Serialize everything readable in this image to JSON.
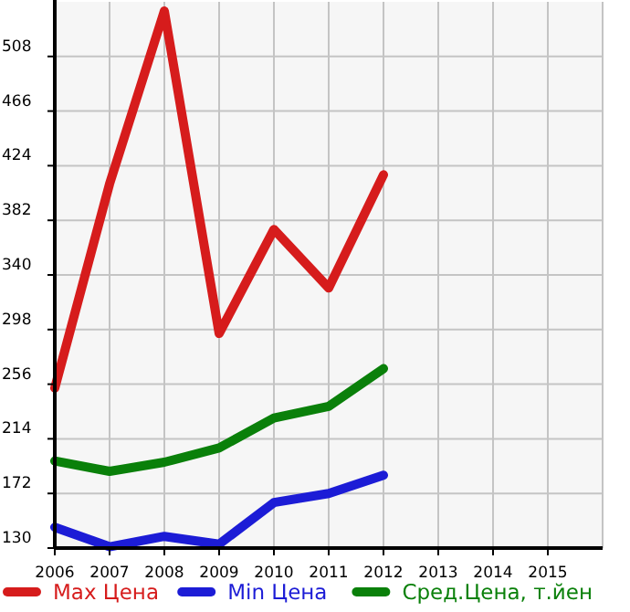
{
  "chart_data": {
    "type": "line",
    "x": [
      2006,
      2007,
      2008,
      2009,
      2010,
      2011,
      2012
    ],
    "series": [
      {
        "name": "Max Цена",
        "color": "#d61c1c",
        "values": [
          253,
          410,
          543,
          295,
          375,
          330,
          417
        ]
      },
      {
        "name": "Min Цена",
        "color": "#1c1cd6",
        "values": [
          146,
          131,
          139,
          133,
          165,
          172,
          186
        ]
      },
      {
        "name": "Сред.Цена, т.йен",
        "color": "#0a800a",
        "values": [
          197,
          189,
          196,
          207,
          230,
          239,
          268
        ]
      }
    ],
    "xlim": [
      2006,
      2016
    ],
    "xticks": [
      2006,
      2007,
      2008,
      2009,
      2010,
      2011,
      2012,
      2013,
      2014,
      2015
    ],
    "ylim": [
      130,
      550
    ],
    "yticks": [
      130,
      172,
      214,
      256,
      298,
      340,
      382,
      424,
      466,
      508
    ],
    "grid": true,
    "legend": "bottom",
    "marker": "none",
    "line_style": "solid"
  }
}
